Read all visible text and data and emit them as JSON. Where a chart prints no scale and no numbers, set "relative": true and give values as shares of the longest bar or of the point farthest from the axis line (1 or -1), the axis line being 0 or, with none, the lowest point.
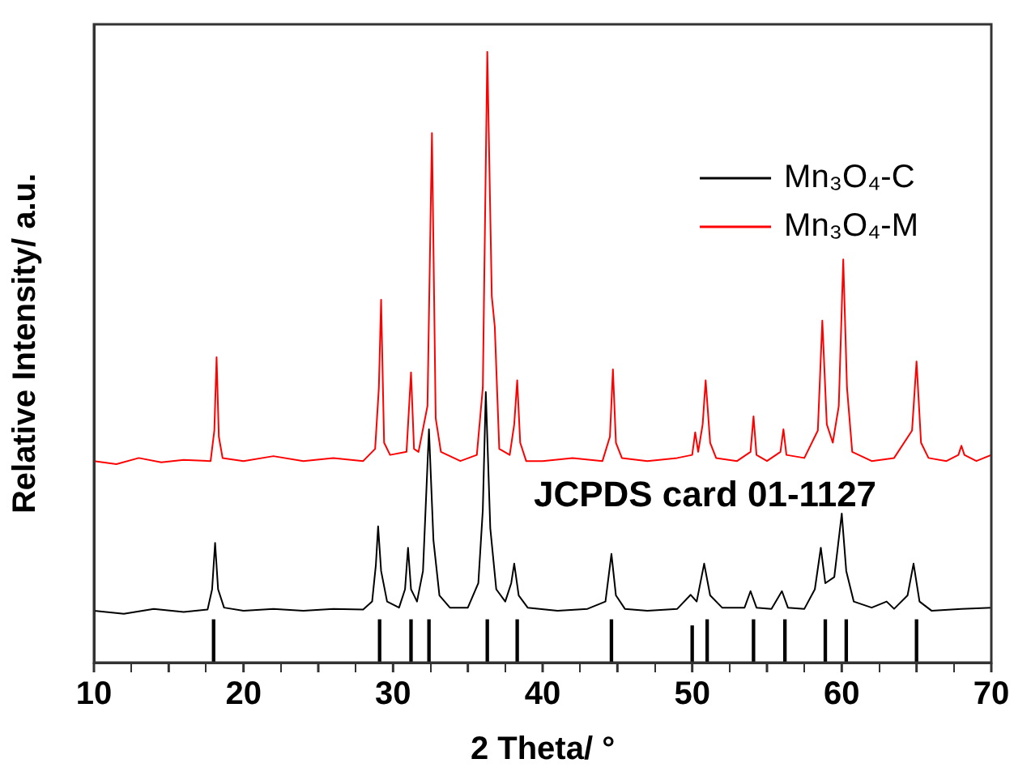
{
  "chart_data": {
    "type": "line",
    "xlabel": "2 Theta/ °",
    "ylabel": "Relative Intensity/ a.u.",
    "relative": true,
    "marker": "none",
    "legend": "top right",
    "xlim": [
      10,
      70
    ],
    "xticks": [
      10,
      {
        "value": 15,
        "label": null
      },
      20,
      {
        "value": 25,
        "label": null
      },
      30,
      {
        "value": 35,
        "label": null
      },
      40,
      {
        "value": 45,
        "label": null
      },
      50,
      {
        "value": 55,
        "label": null
      },
      60,
      {
        "value": 65,
        "label": null
      },
      70
    ],
    "annotations": [
      "JCPDS card 01-1127"
    ],
    "series": [
      {
        "name": "Mn₃O₄-C",
        "color": "#000000",
        "x": [
          10,
          12,
          14,
          16,
          17.6,
          17.9,
          18.1,
          18.3,
          18.7,
          20,
          22,
          24,
          26,
          28,
          28.6,
          28.85,
          29.0,
          29.2,
          29.6,
          30.4,
          30.8,
          31.0,
          31.2,
          31.6,
          32.0,
          32.4,
          32.7,
          33.1,
          33.8,
          35.0,
          35.7,
          36.0,
          36.2,
          36.5,
          36.9,
          37.5,
          37.9,
          38.1,
          38.4,
          39,
          41,
          43,
          44.2,
          44.6,
          44.9,
          45.5,
          47,
          49,
          49.9,
          50.3,
          50.8,
          51.2,
          52,
          53.5,
          53.9,
          54.3,
          55.3,
          56.0,
          56.4,
          57.5,
          58.2,
          58.6,
          58.9,
          59.5,
          60.0,
          60.3,
          60.8,
          62,
          63,
          63.5,
          64.4,
          64.8,
          65.2,
          66,
          68,
          70
        ],
        "values": [
          0.085,
          0.08,
          0.088,
          0.083,
          0.087,
          0.12,
          0.196,
          0.12,
          0.09,
          0.085,
          0.088,
          0.085,
          0.088,
          0.087,
          0.1,
          0.16,
          0.223,
          0.15,
          0.1,
          0.09,
          0.12,
          0.188,
          0.12,
          0.1,
          0.15,
          0.382,
          0.2,
          0.11,
          0.09,
          0.09,
          0.13,
          0.25,
          0.443,
          0.22,
          0.12,
          0.1,
          0.13,
          0.162,
          0.11,
          0.09,
          0.085,
          0.088,
          0.1,
          0.178,
          0.11,
          0.088,
          0.085,
          0.088,
          0.111,
          0.1,
          0.162,
          0.11,
          0.09,
          0.09,
          0.117,
          0.09,
          0.088,
          0.117,
          0.09,
          0.088,
          0.12,
          0.188,
          0.13,
          0.14,
          0.244,
          0.15,
          0.1,
          0.09,
          0.1,
          0.088,
          0.11,
          0.162,
          0.1,
          0.085,
          0.088,
          0.09
        ]
      },
      {
        "name": "Mn₃O₄-M",
        "color": "#ff0000",
        "x": [
          10,
          11.5,
          13,
          14.5,
          16,
          17.8,
          18.05,
          18.2,
          18.35,
          18.6,
          20,
          22,
          24,
          26,
          28,
          28.8,
          29.05,
          29.2,
          29.4,
          29.8,
          30.9,
          31.2,
          31.4,
          31.7,
          32.3,
          32.6,
          32.85,
          33.2,
          34.5,
          35.6,
          36.0,
          36.3,
          36.6,
          36.8,
          37.1,
          37.8,
          38.1,
          38.3,
          38.5,
          38.9,
          40,
          42,
          44,
          44.5,
          44.7,
          44.9,
          45.3,
          47,
          49,
          50.0,
          50.2,
          50.4,
          50.7,
          50.9,
          51.2,
          51.6,
          53,
          53.9,
          54.1,
          54.3,
          55,
          55.9,
          56.1,
          56.3,
          57.5,
          58.4,
          58.7,
          59.0,
          59.4,
          59.8,
          60.1,
          60.35,
          60.7,
          62,
          63.5,
          64.7,
          65.0,
          65.3,
          65.8,
          67,
          67.8,
          68.0,
          68.2,
          69,
          70
        ],
        "values": [
          0.33,
          0.325,
          0.335,
          0.328,
          0.332,
          0.33,
          0.38,
          0.5,
          0.37,
          0.335,
          0.33,
          0.338,
          0.33,
          0.335,
          0.33,
          0.35,
          0.45,
          0.594,
          0.36,
          0.34,
          0.345,
          0.475,
          0.35,
          0.345,
          0.42,
          0.867,
          0.4,
          0.345,
          0.33,
          0.34,
          0.45,
          1.0,
          0.6,
          0.55,
          0.35,
          0.34,
          0.39,
          0.462,
          0.36,
          0.33,
          0.33,
          0.335,
          0.33,
          0.37,
          0.48,
          0.36,
          0.335,
          0.33,
          0.335,
          0.34,
          0.377,
          0.345,
          0.39,
          0.462,
          0.36,
          0.335,
          0.33,
          0.345,
          0.403,
          0.34,
          0.33,
          0.345,
          0.382,
          0.34,
          0.335,
          0.38,
          0.56,
          0.39,
          0.36,
          0.42,
          0.66,
          0.45,
          0.345,
          0.33,
          0.335,
          0.38,
          0.493,
          0.36,
          0.335,
          0.33,
          0.34,
          0.355,
          0.34,
          0.33,
          0.34
        ]
      },
      {
        "type": "bar",
        "color": "#000000",
        "x": [
          18.0,
          29.1,
          31.2,
          32.4,
          36.3,
          38.3,
          44.6,
          50.0,
          51.0,
          54.1,
          56.2,
          58.9,
          60.3,
          65.0
        ],
        "values": [
          0.07,
          0.07,
          0.07,
          0.07,
          0.07,
          0.07,
          0.07,
          0.06,
          0.07,
          0.07,
          0.07,
          0.07,
          0.07,
          0.07
        ]
      }
    ]
  }
}
